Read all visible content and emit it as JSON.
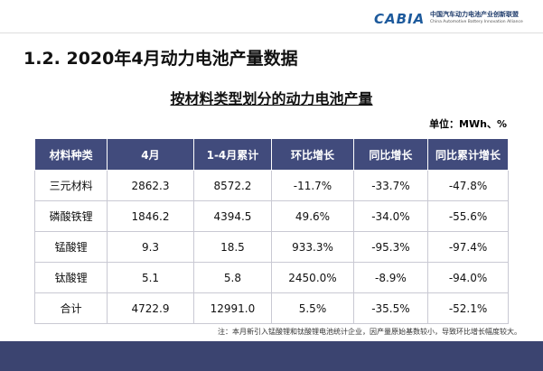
{
  "header": {
    "logo": "CABIA",
    "org_name": "中国汽车动力电池产业创新联盟",
    "org_name_en": "China Automotive Battery Innovation Alliance"
  },
  "title": "1.2.  2020年4月动力电池产量数据",
  "subtitle": "按材料类型划分的动力电池产量",
  "unit": "单位：MWh、%",
  "table": {
    "columns": [
      "材料种类",
      "4月",
      "1-4月累计",
      "环比增长",
      "同比增长",
      "同比累计增长"
    ],
    "rows": [
      [
        "三元材料",
        "2862.3",
        "8572.2",
        "-11.7%",
        "-33.7%",
        "-47.8%"
      ],
      [
        "磷酸铁锂",
        "1846.2",
        "4394.5",
        "49.6%",
        "-34.0%",
        "-55.6%"
      ],
      [
        "锰酸锂",
        "9.3",
        "18.5",
        "933.3%",
        "-95.3%",
        "-97.4%"
      ],
      [
        "钛酸锂",
        "5.1",
        "5.8",
        "2450.0%",
        "-8.9%",
        "-94.0%"
      ],
      [
        "合计",
        "4722.9",
        "12991.0",
        "5.5%",
        "-35.5%",
        "-52.1%"
      ]
    ]
  },
  "note": "注：本月新引入锰酸锂和钛酸锂电池统计企业，因产量原始基数较小，导致环比增长幅度较大。"
}
